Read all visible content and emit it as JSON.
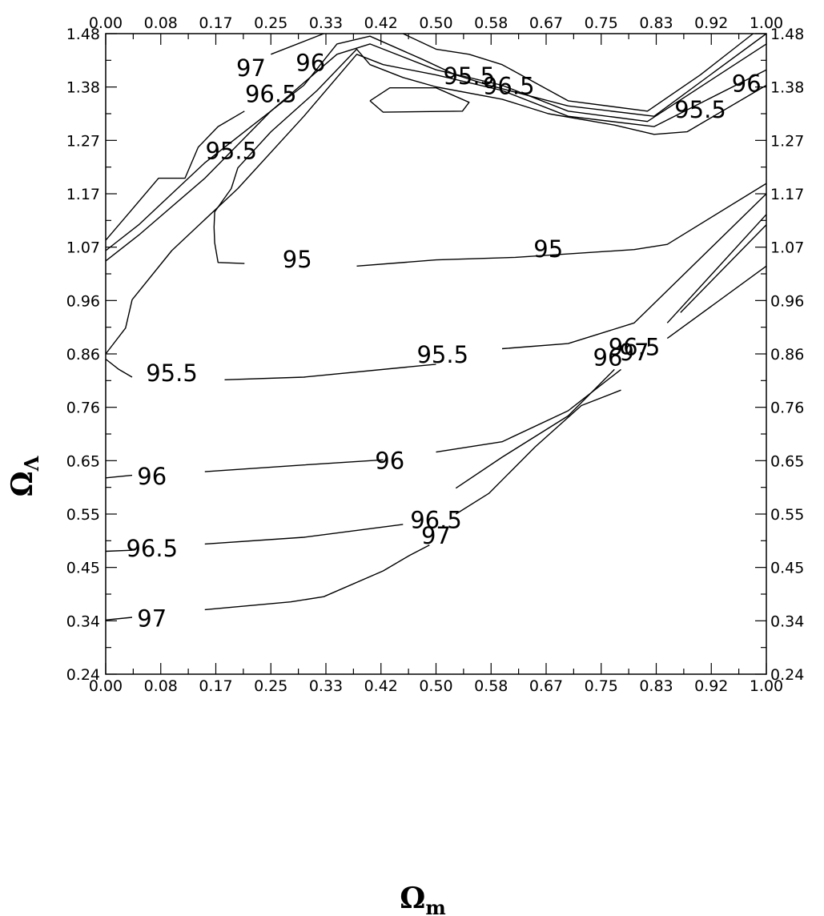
{
  "chart_data": {
    "type": "contour",
    "title": "",
    "xlabel": {
      "main": "Ω",
      "sub": "m"
    },
    "ylabel": {
      "main": "Ω",
      "sub": "Λ"
    },
    "xlim": [
      0,
      1
    ],
    "ylim": [
      0.24,
      1.48
    ],
    "x_ticks": [
      "0.00",
      "0.08",
      "0.17",
      "0.25",
      "0.33",
      "0.42",
      "0.50",
      "0.58",
      "0.67",
      "0.75",
      "0.83",
      "0.92",
      "1.00"
    ],
    "y_ticks": [
      "0.24",
      "0.34",
      "0.45",
      "0.55",
      "0.65",
      "0.76",
      "0.86",
      "0.96",
      "1.07",
      "1.17",
      "1.27",
      "1.38",
      "1.48"
    ],
    "minor_ticks_per_major": 2,
    "mirror_axes": true,
    "contours": [
      {
        "level": "95",
        "label_positions": [
          [
            0.29,
            1.04
          ],
          [
            0.67,
            1.06
          ]
        ],
        "lines": [
          [
            [
              0.21,
              1.035
            ],
            [
              0.17,
              1.037
            ],
            [
              0.165,
              1.075
            ],
            [
              0.164,
              1.105
            ],
            [
              0.165,
              1.135
            ],
            [
              0.19,
              1.18
            ],
            [
              0.2,
              1.22
            ],
            [
              0.25,
              1.29
            ],
            [
              0.32,
              1.37
            ],
            [
              0.38,
              1.45
            ],
            [
              0.4,
              1.42
            ],
            [
              0.45,
              1.395
            ],
            [
              0.5,
              1.377
            ],
            [
              0.6,
              1.353
            ],
            [
              0.67,
              1.325
            ],
            [
              0.77,
              1.303
            ],
            [
              0.83,
              1.285
            ],
            [
              0.88,
              1.29
            ],
            [
              1.0,
              1.38
            ]
          ],
          [
            [
              0.38,
              1.03
            ],
            [
              0.5,
              1.042
            ],
            [
              0.62,
              1.047
            ],
            [
              0.8,
              1.062
            ],
            [
              0.85,
              1.072
            ],
            [
              1.0,
              1.19
            ]
          ],
          [
            [
              0.4,
              1.35
            ],
            [
              0.43,
              1.375
            ],
            [
              0.5,
              1.375
            ],
            [
              0.55,
              1.347
            ],
            [
              0.54,
              1.33
            ],
            [
              0.42,
              1.328
            ],
            [
              0.4,
              1.35
            ]
          ]
        ]
      },
      {
        "level": "95.5",
        "label_positions": [
          [
            0.1,
            0.82
          ],
          [
            0.51,
            0.855
          ],
          [
            0.19,
            1.25
          ],
          [
            0.55,
            1.395
          ],
          [
            0.9,
            1.33
          ]
        ],
        "lines": [
          [
            [
              0.0,
              0.85
            ],
            [
              0.02,
              0.83
            ],
            [
              0.04,
              0.815
            ]
          ],
          [
            [
              0.18,
              0.81
            ],
            [
              0.3,
              0.815
            ],
            [
              0.5,
              0.84
            ]
          ],
          [
            [
              0.6,
              0.87
            ],
            [
              0.7,
              0.88
            ],
            [
              0.8,
              0.92
            ],
            [
              1.0,
              1.17
            ]
          ],
          [
            [
              0.0,
              0.86
            ],
            [
              0.03,
              0.91
            ],
            [
              0.04,
              0.965
            ],
            [
              0.1,
              1.06
            ],
            [
              0.2,
              1.18
            ],
            [
              0.3,
              1.32
            ],
            [
              0.38,
              1.44
            ],
            [
              0.42,
              1.42
            ],
            [
              0.5,
              1.4
            ],
            [
              0.6,
              1.37
            ],
            [
              0.7,
              1.32
            ],
            [
              0.83,
              1.3
            ],
            [
              1.0,
              1.41
            ]
          ]
        ]
      },
      {
        "level": "96",
        "label_positions": [
          [
            0.07,
            0.62
          ],
          [
            0.43,
            0.65
          ],
          [
            0.76,
            0.85
          ],
          [
            0.31,
            1.42
          ],
          [
            0.97,
            1.38
          ]
        ],
        "lines": [
          [
            [
              0.0,
              0.62
            ],
            [
              0.04,
              0.625
            ]
          ],
          [
            [
              0.15,
              0.632
            ],
            [
              0.3,
              0.645
            ],
            [
              0.42,
              0.655
            ]
          ],
          [
            [
              0.5,
              0.67
            ],
            [
              0.6,
              0.69
            ],
            [
              0.7,
              0.75
            ],
            [
              0.78,
              0.83
            ]
          ],
          [
            [
              0.85,
              0.92
            ],
            [
              1.0,
              1.13
            ]
          ],
          [
            [
              0.0,
              1.04
            ],
            [
              0.05,
              1.09
            ],
            [
              0.15,
              1.2
            ],
            [
              0.25,
              1.33
            ],
            [
              0.35,
              1.44
            ],
            [
              0.4,
              1.46
            ],
            [
              0.5,
              1.41
            ],
            [
              0.6,
              1.38
            ],
            [
              0.7,
              1.33
            ],
            [
              0.82,
              1.31
            ],
            [
              1.0,
              1.46
            ]
          ]
        ]
      },
      {
        "level": "96.5",
        "label_positions": [
          [
            0.07,
            0.48
          ],
          [
            0.5,
            0.535
          ],
          [
            0.8,
            0.87
          ],
          [
            0.25,
            1.36
          ],
          [
            0.61,
            1.375
          ]
        ],
        "lines": [
          [
            [
              0.0,
              0.478
            ],
            [
              0.04,
              0.48
            ]
          ],
          [
            [
              0.15,
              0.492
            ],
            [
              0.3,
              0.505
            ],
            [
              0.45,
              0.53
            ]
          ],
          [
            [
              0.53,
              0.6
            ],
            [
              0.6,
              0.66
            ],
            [
              0.7,
              0.74
            ],
            [
              0.77,
              0.83
            ]
          ],
          [
            [
              0.87,
              0.94
            ],
            [
              1.0,
              1.11
            ]
          ],
          [
            [
              0.0,
              1.06
            ],
            [
              0.05,
              1.11
            ],
            [
              0.15,
              1.23
            ],
            [
              0.22,
              1.3
            ],
            [
              0.3,
              1.38
            ],
            [
              0.35,
              1.46
            ],
            [
              0.4,
              1.475
            ],
            [
              0.48,
              1.43
            ],
            [
              0.53,
              1.4
            ],
            [
              0.58,
              1.38
            ],
            [
              0.7,
              1.34
            ],
            [
              0.83,
              1.32
            ],
            [
              1.0,
              1.48
            ]
          ]
        ]
      },
      {
        "level": "97",
        "label_positions": [
          [
            0.07,
            0.345
          ],
          [
            0.5,
            0.505
          ],
          [
            0.8,
            0.86
          ],
          [
            0.22,
            1.41
          ]
        ],
        "lines": [
          [
            [
              0.0,
              0.345
            ],
            [
              0.04,
              0.35
            ]
          ],
          [
            [
              0.15,
              0.365
            ],
            [
              0.28,
              0.38
            ],
            [
              0.33,
              0.39
            ],
            [
              0.42,
              0.44
            ],
            [
              0.46,
              0.47
            ],
            [
              0.49,
              0.49
            ]
          ],
          [
            [
              0.53,
              0.55
            ],
            [
              0.58,
              0.59
            ],
            [
              0.65,
              0.68
            ],
            [
              0.72,
              0.76
            ],
            [
              0.78,
              0.79
            ]
          ],
          [
            [
              0.85,
              0.89
            ],
            [
              1.0,
              1.03
            ]
          ],
          [
            [
              0.0,
              1.08
            ],
            [
              0.04,
              1.14
            ],
            [
              0.08,
              1.2
            ],
            [
              0.12,
              1.2
            ],
            [
              0.14,
              1.26
            ],
            [
              0.17,
              1.3
            ],
            [
              0.21,
              1.33
            ]
          ],
          [
            [
              0.25,
              1.44
            ],
            [
              0.33,
              1.48
            ]
          ],
          [
            [
              0.45,
              1.48
            ],
            [
              0.5,
              1.45
            ],
            [
              0.55,
              1.44
            ],
            [
              0.6,
              1.42
            ],
            [
              0.7,
              1.35
            ],
            [
              0.82,
              1.33
            ],
            [
              0.9,
              1.4
            ],
            [
              0.98,
              1.48
            ]
          ]
        ]
      }
    ]
  }
}
